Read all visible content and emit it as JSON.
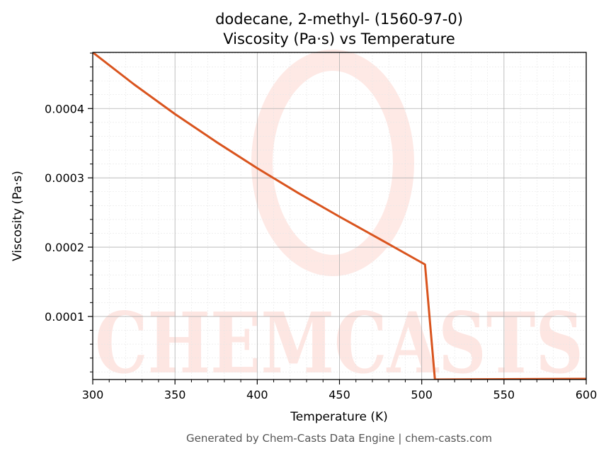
{
  "chart_data": {
    "type": "line",
    "title_line1": "dodecane, 2-methyl- (1560-97-0)",
    "title_line2": "Viscosity (Pa·s) vs Temperature",
    "xlabel": "Temperature (K)",
    "ylabel": "Viscosity (Pa·s)",
    "xlim": [
      300,
      600
    ],
    "ylim": [
      9e-06,
      0.000481
    ],
    "x_ticks": [
      300,
      350,
      400,
      450,
      500,
      550,
      600
    ],
    "x_tick_labels": [
      "300",
      "350",
      "400",
      "450",
      "500",
      "550",
      "600"
    ],
    "y_ticks": [
      0.0001,
      0.0002,
      0.0003,
      0.0004
    ],
    "y_tick_labels": [
      "0.0001",
      "0.0002",
      "0.0003",
      "0.0004"
    ],
    "grid": true,
    "series": [
      {
        "color": "#d9541e",
        "x": [
          300,
          325,
          350,
          375,
          400,
          425,
          450,
          475,
          502,
          508,
          600
        ],
        "y": [
          0.000481,
          0.000435,
          0.000392,
          0.000352,
          0.000314,
          0.000278,
          0.000244,
          0.000211,
          0.000175,
          9e-06,
          1e-05
        ]
      }
    ]
  },
  "watermark": {
    "text": "CHEMCASTS",
    "color": "#fdd3cb"
  },
  "footer": {
    "text": "Generated by Chem-Casts Data Engine | chem-casts.com"
  }
}
